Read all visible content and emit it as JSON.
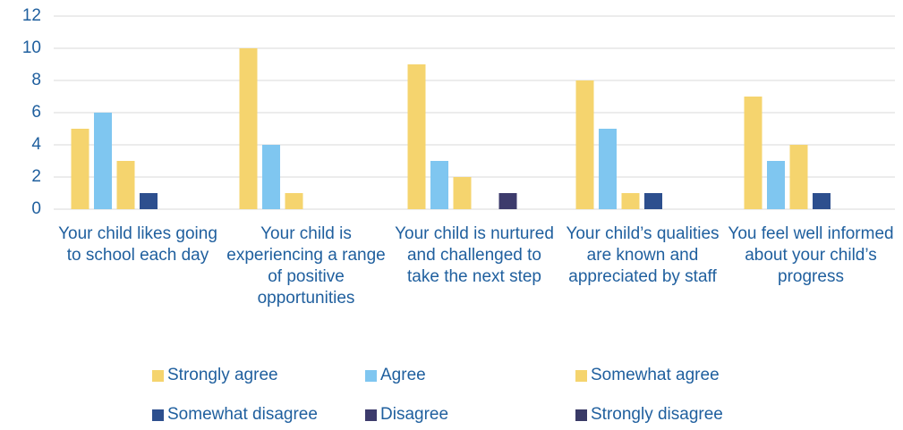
{
  "chart_data": {
    "type": "bar",
    "categories": [
      "Your child likes going to school each day",
      "Your child is experiencing a range of positive opportunities",
      "Your child is nurtured and challenged to take the next step",
      "Your child’s qualities are known and appreciated by staff",
      "You feel well informed about your child’s progress"
    ],
    "series": [
      {
        "name": "Strongly agree",
        "color": "#f5d46e",
        "values": [
          5,
          10,
          9,
          8,
          7
        ]
      },
      {
        "name": "Agree",
        "color": "#7fc6f0",
        "values": [
          6,
          4,
          3,
          5,
          3
        ]
      },
      {
        "name": "Somewhat agree",
        "color": "#f5d46e",
        "values": [
          3,
          1,
          2,
          1,
          4
        ]
      },
      {
        "name": "Somewhat disagree",
        "color": "#2d4f8e",
        "values": [
          1,
          0,
          0,
          1,
          1
        ]
      },
      {
        "name": "Disagree",
        "color": "#3d3b6c",
        "values": [
          0,
          0,
          1,
          0,
          0
        ]
      },
      {
        "name": "Strongly disagree",
        "color": "#393a66",
        "values": [
          0,
          0,
          0,
          0,
          0
        ]
      }
    ],
    "ylim": [
      0,
      12
    ],
    "yticks": [
      0,
      2,
      4,
      6,
      8,
      10,
      12
    ],
    "grid": true,
    "legend": "bottom"
  }
}
